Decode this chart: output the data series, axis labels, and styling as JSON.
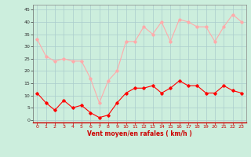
{
  "hours": [
    0,
    1,
    2,
    3,
    4,
    5,
    6,
    7,
    8,
    9,
    10,
    11,
    12,
    13,
    14,
    15,
    16,
    17,
    18,
    19,
    20,
    21,
    22,
    23
  ],
  "wind_avg": [
    11,
    7,
    4,
    8,
    5,
    6,
    3,
    1,
    2,
    7,
    11,
    13,
    13,
    14,
    11,
    13,
    16,
    14,
    14,
    11,
    11,
    14,
    12,
    11
  ],
  "wind_gust": [
    33,
    26,
    24,
    25,
    24,
    24,
    17,
    7,
    16,
    20,
    32,
    32,
    38,
    35,
    40,
    32,
    41,
    40,
    38,
    38,
    32,
    38,
    43,
    40
  ],
  "avg_color": "#ff0000",
  "gust_color": "#ffaaaa",
  "bg_color": "#cceedd",
  "grid_color": "#aacccc",
  "xlabel": "Vent moyen/en rafales ( km/h )",
  "xlabel_color": "#cc0000",
  "yticks": [
    0,
    5,
    10,
    15,
    20,
    25,
    30,
    35,
    40,
    45
  ],
  "xticks": [
    0,
    1,
    2,
    3,
    4,
    5,
    6,
    7,
    8,
    9,
    10,
    11,
    12,
    13,
    14,
    15,
    16,
    17,
    18,
    19,
    20,
    21,
    22,
    23
  ],
  "ylim": [
    -1,
    47
  ],
  "xlim": [
    -0.5,
    23.5
  ]
}
